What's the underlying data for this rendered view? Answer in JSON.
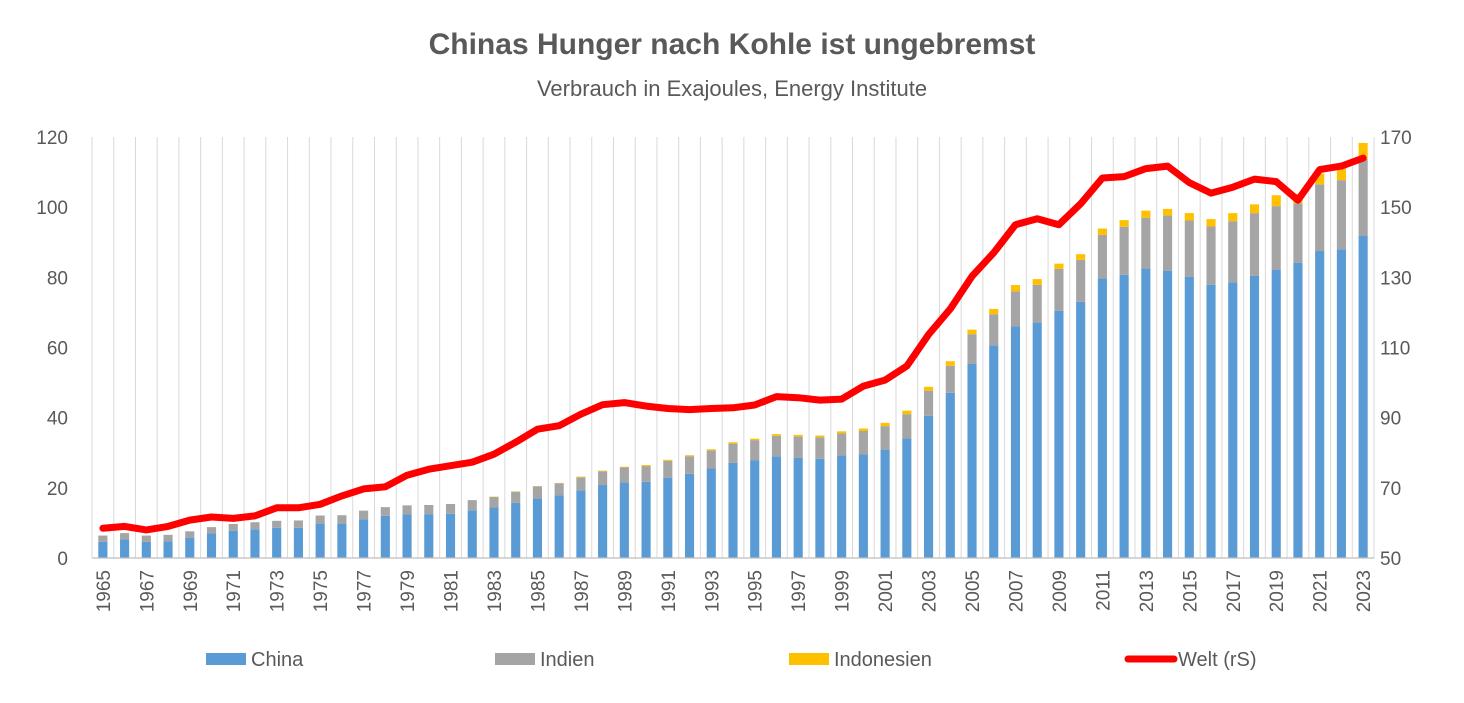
{
  "chart_data": {
    "type": "bar",
    "stacked": true,
    "title": "Chinas Hunger nach Kohle ist ungebremst",
    "subtitle": "Verbrauch in Exajoules, Energy Institute",
    "x": [
      1965,
      1966,
      1967,
      1968,
      1969,
      1970,
      1971,
      1972,
      1973,
      1974,
      1975,
      1976,
      1977,
      1978,
      1979,
      1980,
      1981,
      1982,
      1983,
      1984,
      1985,
      1986,
      1987,
      1988,
      1989,
      1990,
      1991,
      1992,
      1993,
      1994,
      1995,
      1996,
      1997,
      1998,
      1999,
      2000,
      2001,
      2002,
      2003,
      2004,
      2005,
      2006,
      2007,
      2008,
      2009,
      2010,
      2011,
      2012,
      2013,
      2014,
      2015,
      2016,
      2017,
      2018,
      2019,
      2020,
      2021,
      2022,
      2023
    ],
    "x_tick_labels": [
      "1965",
      "1967",
      "1969",
      "1971",
      "1973",
      "1975",
      "1977",
      "1979",
      "1981",
      "1983",
      "1985",
      "1987",
      "1989",
      "1991",
      "1993",
      "1995",
      "1997",
      "1999",
      "2001",
      "2003",
      "2005",
      "2007",
      "2009",
      "2011",
      "2013",
      "2015",
      "2017",
      "2019",
      "2021",
      "2023"
    ],
    "y_left": {
      "ylim": [
        0,
        120
      ],
      "ticks": [
        "0",
        "20",
        "40",
        "60",
        "80",
        "100",
        "120"
      ]
    },
    "y_right": {
      "ylim": [
        50,
        170
      ],
      "ticks": [
        "50",
        "70",
        "90",
        "110",
        "130",
        "150",
        "170"
      ]
    },
    "grid": "vertical",
    "legend_position": "bottom",
    "series": [
      {
        "name": "China",
        "kind": "bar",
        "axis": "left",
        "color": "#5B9BD5",
        "values": [
          4.6,
          5.3,
          4.6,
          4.8,
          5.8,
          7.0,
          7.8,
          8.2,
          8.6,
          8.6,
          9.8,
          9.8,
          11.0,
          12.0,
          12.5,
          12.5,
          12.6,
          13.6,
          14.4,
          15.7,
          17.0,
          17.8,
          19.3,
          20.8,
          21.5,
          21.7,
          22.9,
          24.0,
          25.5,
          27.1,
          27.9,
          29.0,
          28.6,
          28.3,
          29.2,
          29.6,
          30.9,
          34.1,
          40.5,
          47.1,
          55.3,
          60.6,
          66.0,
          67.1,
          70.5,
          73.0,
          79.7,
          80.7,
          82.5,
          81.9,
          80.2,
          77.9,
          78.6,
          80.4,
          82.2,
          84.1,
          87.5,
          88.0,
          91.9
        ]
      },
      {
        "name": "Indien",
        "kind": "bar",
        "axis": "left",
        "color": "#A5A5A5",
        "values": [
          1.8,
          1.8,
          1.8,
          1.8,
          1.8,
          1.8,
          1.9,
          2.0,
          2.0,
          2.1,
          2.3,
          2.4,
          2.5,
          2.5,
          2.5,
          2.6,
          2.8,
          2.9,
          3.0,
          3.2,
          3.4,
          3.5,
          3.7,
          3.9,
          4.3,
          4.5,
          4.8,
          5.0,
          5.2,
          5.5,
          5.7,
          5.8,
          6.0,
          6.1,
          6.3,
          6.6,
          6.7,
          6.9,
          7.2,
          7.7,
          8.5,
          8.9,
          10.0,
          10.8,
          11.9,
          12.0,
          12.4,
          13.7,
          14.5,
          15.7,
          16.0,
          16.6,
          17.4,
          17.9,
          18.1,
          16.9,
          19.0,
          19.7,
          21.9
        ]
      },
      {
        "name": "Indonesien",
        "kind": "bar",
        "axis": "left",
        "color": "#FFC000",
        "values": [
          0.0,
          0.0,
          0.0,
          0.0,
          0.0,
          0.0,
          0.0,
          0.0,
          0.0,
          0.0,
          0.0,
          0.0,
          0.0,
          0.0,
          0.0,
          0.0,
          0.0,
          0.0,
          0.1,
          0.1,
          0.1,
          0.1,
          0.2,
          0.2,
          0.2,
          0.3,
          0.3,
          0.3,
          0.3,
          0.4,
          0.4,
          0.5,
          0.5,
          0.5,
          0.6,
          0.7,
          0.9,
          1.0,
          1.1,
          1.3,
          1.3,
          1.5,
          1.8,
          1.6,
          1.5,
          1.6,
          1.8,
          1.9,
          2.0,
          1.9,
          2.1,
          2.1,
          2.3,
          2.5,
          3.1,
          2.8,
          3.1,
          3.7,
          4.5
        ]
      },
      {
        "name": "Welt (rS)",
        "kind": "line",
        "axis": "right",
        "color": "#FF0000",
        "values": [
          58.5,
          59.0,
          58.0,
          59.0,
          60.8,
          61.7,
          61.3,
          62.0,
          64.3,
          64.3,
          65.3,
          67.7,
          69.7,
          70.3,
          73.6,
          75.3,
          76.3,
          77.3,
          79.6,
          83.0,
          86.7,
          87.7,
          91.0,
          93.7,
          94.3,
          93.3,
          92.6,
          92.3,
          92.6,
          92.8,
          93.6,
          96.0,
          95.7,
          95.0,
          95.3,
          99.0,
          100.7,
          104.7,
          113.7,
          121.0,
          130.3,
          137.0,
          145.0,
          146.7,
          145.0,
          151.0,
          158.3,
          158.7,
          161.0,
          161.7,
          157.0,
          154.0,
          155.7,
          158.0,
          157.3,
          152.0,
          160.7,
          161.7,
          164.0
        ]
      }
    ]
  }
}
